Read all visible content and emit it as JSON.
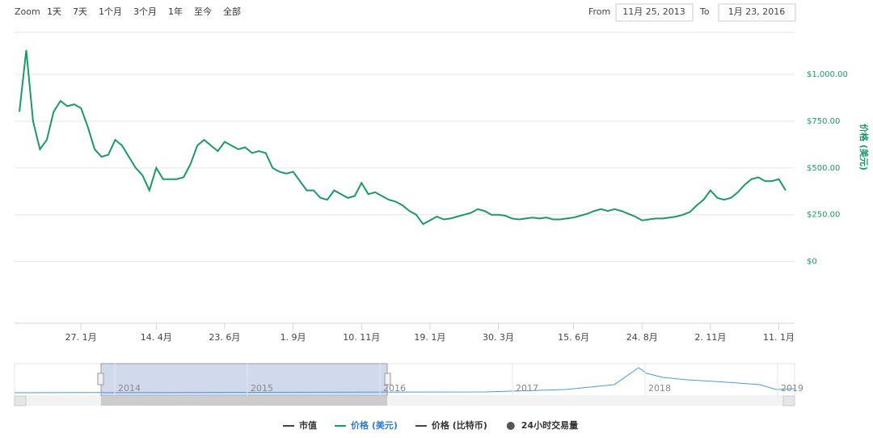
{
  "chart_data": {
    "type": "line",
    "zoom_label": "Zoom",
    "zoom_buttons": [
      "1天",
      "7天",
      "1个月",
      "3个月",
      "1年",
      "至今",
      "全部"
    ],
    "from_label": "From",
    "from_date": "11月 25, 2013",
    "to_label": "To",
    "to_date": "1月 23, 2016",
    "y_axis_title": "价格 (美元)",
    "categories": [
      null,
      null,
      null,
      null,
      null,
      null,
      null,
      null,
      null,
      "27. 1月",
      null,
      null,
      null,
      null,
      null,
      null,
      null,
      null,
      null,
      null,
      "14. 4月",
      null,
      null,
      null,
      null,
      null,
      null,
      null,
      null,
      null,
      "23. 6月",
      null,
      null,
      null,
      null,
      null,
      null,
      null,
      null,
      null,
      "1. 9月",
      null,
      null,
      null,
      null,
      null,
      null,
      null,
      null,
      null,
      "10. 11月",
      null,
      null,
      null,
      null,
      null,
      null,
      null,
      null,
      null,
      "19. 1月",
      null,
      null,
      null,
      null,
      null,
      null,
      null,
      null,
      null,
      "30. 3月",
      null,
      null,
      null,
      null,
      null,
      null,
      null,
      null,
      null,
      null,
      "15. 6月",
      null,
      null,
      null,
      null,
      null,
      null,
      null,
      null,
      null,
      "24. 8月",
      null,
      null,
      null,
      null,
      null,
      null,
      null,
      null,
      null,
      "2. 11月",
      null,
      null,
      null,
      null,
      null,
      null,
      null,
      null,
      null,
      "11. 1月",
      null
    ],
    "series": [
      {
        "name": "市值",
        "color": "#434348",
        "visible": false
      },
      {
        "name": "价格 (美元)",
        "color": "#1a9a68",
        "visible": true,
        "values": [
          800,
          1130,
          750,
          600,
          650,
          800,
          858,
          830,
          840,
          820,
          720,
          600,
          560,
          570,
          650,
          620,
          560,
          500,
          460,
          380,
          500,
          440,
          440,
          440,
          450,
          520,
          620,
          650,
          620,
          590,
          640,
          620,
          600,
          610,
          580,
          590,
          580,
          500,
          480,
          470,
          480,
          430,
          380,
          380,
          340,
          330,
          380,
          360,
          340,
          350,
          420,
          360,
          370,
          350,
          330,
          320,
          300,
          270,
          250,
          200,
          220,
          240,
          225,
          230,
          240,
          250,
          260,
          280,
          270,
          250,
          250,
          245,
          230,
          225,
          230,
          235,
          230,
          235,
          225,
          225,
          230,
          235,
          245,
          255,
          270,
          280,
          270,
          280,
          270,
          255,
          240,
          220,
          225,
          230,
          230,
          235,
          240,
          250,
          265,
          300,
          330,
          380,
          340,
          330,
          340,
          370,
          410,
          440,
          450,
          430,
          430,
          440,
          380
        ]
      },
      {
        "name": "价格 (比特币)",
        "color": "#434348",
        "visible": false
      },
      {
        "name": "24小时交易量",
        "color": "#555555",
        "visible": false,
        "marker": "circle"
      }
    ],
    "ylim": [
      -330,
      1225
    ],
    "yticks": [
      {
        "value": 0,
        "label": "$0"
      },
      {
        "value": 250,
        "label": "$250.00"
      },
      {
        "value": 500,
        "label": "$500.00"
      },
      {
        "value": 750,
        "label": "$750.00"
      },
      {
        "value": 1000,
        "label": "$1,000.00"
      }
    ],
    "grid": true,
    "navigator_labels": [
      "2014",
      "2015",
      "2016",
      "2017",
      "2018",
      "2019"
    ]
  }
}
